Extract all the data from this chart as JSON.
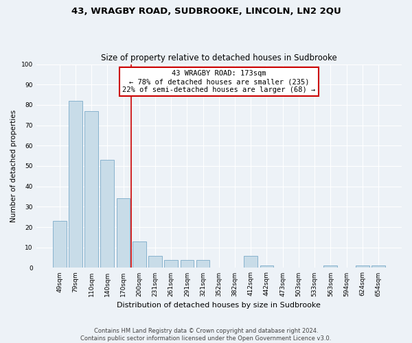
{
  "title": "43, WRAGBY ROAD, SUDBROOKE, LINCOLN, LN2 2QU",
  "subtitle": "Size of property relative to detached houses in Sudbrooke",
  "xlabel": "Distribution of detached houses by size in Sudbrooke",
  "ylabel": "Number of detached properties",
  "bar_labels": [
    "49sqm",
    "79sqm",
    "110sqm",
    "140sqm",
    "170sqm",
    "200sqm",
    "231sqm",
    "261sqm",
    "291sqm",
    "321sqm",
    "352sqm",
    "382sqm",
    "412sqm",
    "442sqm",
    "473sqm",
    "503sqm",
    "533sqm",
    "563sqm",
    "594sqm",
    "624sqm",
    "654sqm"
  ],
  "bar_values": [
    23,
    82,
    77,
    53,
    34,
    13,
    6,
    4,
    4,
    4,
    0,
    0,
    6,
    1,
    0,
    0,
    0,
    1,
    0,
    1,
    1
  ],
  "bar_color": "#c8dce8",
  "bar_edge_color": "#7aaac8",
  "vline_x_index": 4,
  "vline_color": "#cc0000",
  "annotation_line1": "43 WRAGBY ROAD: 173sqm",
  "annotation_line2": "← 78% of detached houses are smaller (235)",
  "annotation_line3": "22% of semi-detached houses are larger (68) →",
  "annotation_box_color": "#ffffff",
  "annotation_box_edge": "#cc0000",
  "ylim": [
    0,
    100
  ],
  "yticks": [
    0,
    10,
    20,
    30,
    40,
    50,
    60,
    70,
    80,
    90,
    100
  ],
  "footer_line1": "Contains HM Land Registry data © Crown copyright and database right 2024.",
  "footer_line2": "Contains public sector information licensed under the Open Government Licence v3.0.",
  "background_color": "#edf2f7",
  "title_fontsize": 9.5,
  "subtitle_fontsize": 8.5,
  "xlabel_fontsize": 8,
  "ylabel_fontsize": 7.5,
  "tick_fontsize": 6.5,
  "annotation_fontsize": 7.5,
  "footer_fontsize": 6
}
